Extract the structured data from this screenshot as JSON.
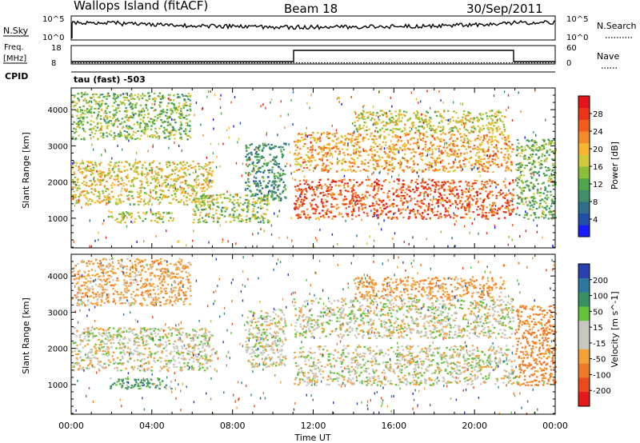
{
  "header": {
    "station": "Wallops Island (fitACF)",
    "beam": "Beam 18",
    "date": "30/Sep/2011"
  },
  "panels": {
    "nsky": {
      "label": "N.Sky",
      "ticks": [
        "10^5",
        "10^0"
      ]
    },
    "nsearch": {
      "label": "N.Search",
      "ticks": [
        "10^5",
        "10^0"
      ]
    },
    "freq": {
      "label_line1": "Freq.",
      "label_line2": "[MHz]",
      "ticks": [
        "18",
        "8"
      ]
    },
    "nave": {
      "label": "Nave",
      "ticks": [
        "60",
        "0"
      ]
    },
    "cpid": {
      "label": "CPID",
      "value": "tau (fast) -503"
    }
  },
  "chart_data": [
    {
      "type": "heatmap",
      "name": "power",
      "xlabel": "Time UT",
      "ylabel": "Slant Range [km]",
      "x_ticks": [
        "00:00",
        "04:00",
        "08:00",
        "12:00",
        "16:00",
        "20:00",
        "00:00"
      ],
      "x_range_hours": [
        0,
        24
      ],
      "y_ticks": [
        1000,
        2000,
        3000,
        4000
      ],
      "y_range": [
        180,
        4600
      ],
      "colorbar": {
        "label": "Power [dB]",
        "ticks": [
          4,
          8,
          12,
          16,
          20,
          24,
          28
        ],
        "range": [
          0,
          32
        ],
        "colors": [
          "#1a1aff",
          "#1f4fa8",
          "#2e6e8c",
          "#3f8f6a",
          "#4da84d",
          "#8bbf3a",
          "#d2c93a",
          "#f7b531",
          "#f58a2a",
          "#f25d1d",
          "#ec3518",
          "#e4151a"
        ]
      },
      "bands": [
        {
          "t0": 0.0,
          "t1": 5.9,
          "r0": 3200,
          "r1": 4500,
          "level": 14
        },
        {
          "t0": 0.0,
          "t1": 7.0,
          "r0": 1400,
          "r1": 2600,
          "level": 18
        },
        {
          "t0": 1.8,
          "t1": 5.0,
          "r0": 900,
          "r1": 1200,
          "level": 16
        },
        {
          "t0": 6.0,
          "t1": 9.8,
          "r0": 900,
          "r1": 1700,
          "level": 15
        },
        {
          "t0": 8.6,
          "t1": 10.6,
          "r0": 1500,
          "r1": 3100,
          "level": 10
        },
        {
          "t0": 11.0,
          "t1": 21.9,
          "r0": 1000,
          "r1": 2100,
          "level": 26
        },
        {
          "t0": 11.0,
          "t1": 21.9,
          "r0": 2300,
          "r1": 3400,
          "level": 21
        },
        {
          "t0": 14.0,
          "t1": 21.5,
          "r0": 3400,
          "r1": 4000,
          "level": 17
        },
        {
          "t0": 22.0,
          "t1": 24.0,
          "r0": 1000,
          "r1": 3200,
          "level": 13
        }
      ]
    },
    {
      "type": "heatmap",
      "name": "velocity",
      "xlabel": "Time UT",
      "ylabel": "Slant Range [km]",
      "x_ticks": [
        "00:00",
        "04:00",
        "08:00",
        "12:00",
        "16:00",
        "20:00",
        "00:00"
      ],
      "x_range_hours": [
        0,
        24
      ],
      "y_ticks": [
        1000,
        2000,
        3000,
        4000
      ],
      "y_range": [
        180,
        4600
      ],
      "colorbar": {
        "label": "Velocity [m s^-1]",
        "ticks": [
          200,
          100,
          50,
          15,
          -15,
          -50,
          -100,
          -200
        ],
        "colors": [
          "#2a3fb0",
          "#2d78a0",
          "#3a8f62",
          "#62c23a",
          "#c8c8c0",
          "#c8c8c0",
          "#f3a23a",
          "#f07a2a",
          "#ea4a1c",
          "#e41a1a"
        ]
      },
      "bands": [
        {
          "t0": 0.0,
          "t1": 5.9,
          "r0": 3200,
          "r1": 4500,
          "value": -30
        },
        {
          "t0": 0.0,
          "t1": 7.0,
          "r0": 1400,
          "r1": 2600,
          "value": 0
        },
        {
          "t0": 1.8,
          "t1": 5.0,
          "r0": 900,
          "r1": 1200,
          "value": 40
        },
        {
          "t0": 8.6,
          "t1": 10.6,
          "r0": 1500,
          "r1": 3100,
          "value": 0
        },
        {
          "t0": 11.0,
          "t1": 21.9,
          "r0": 1000,
          "r1": 2100,
          "value": 0
        },
        {
          "t0": 11.0,
          "t1": 21.9,
          "r0": 2300,
          "r1": 3400,
          "value": 0
        },
        {
          "t0": 14.0,
          "t1": 21.5,
          "r0": 3400,
          "r1": 4000,
          "value": -40
        },
        {
          "t0": 22.0,
          "t1": 24.0,
          "r0": 1000,
          "r1": 3200,
          "value": -60
        }
      ]
    }
  ]
}
